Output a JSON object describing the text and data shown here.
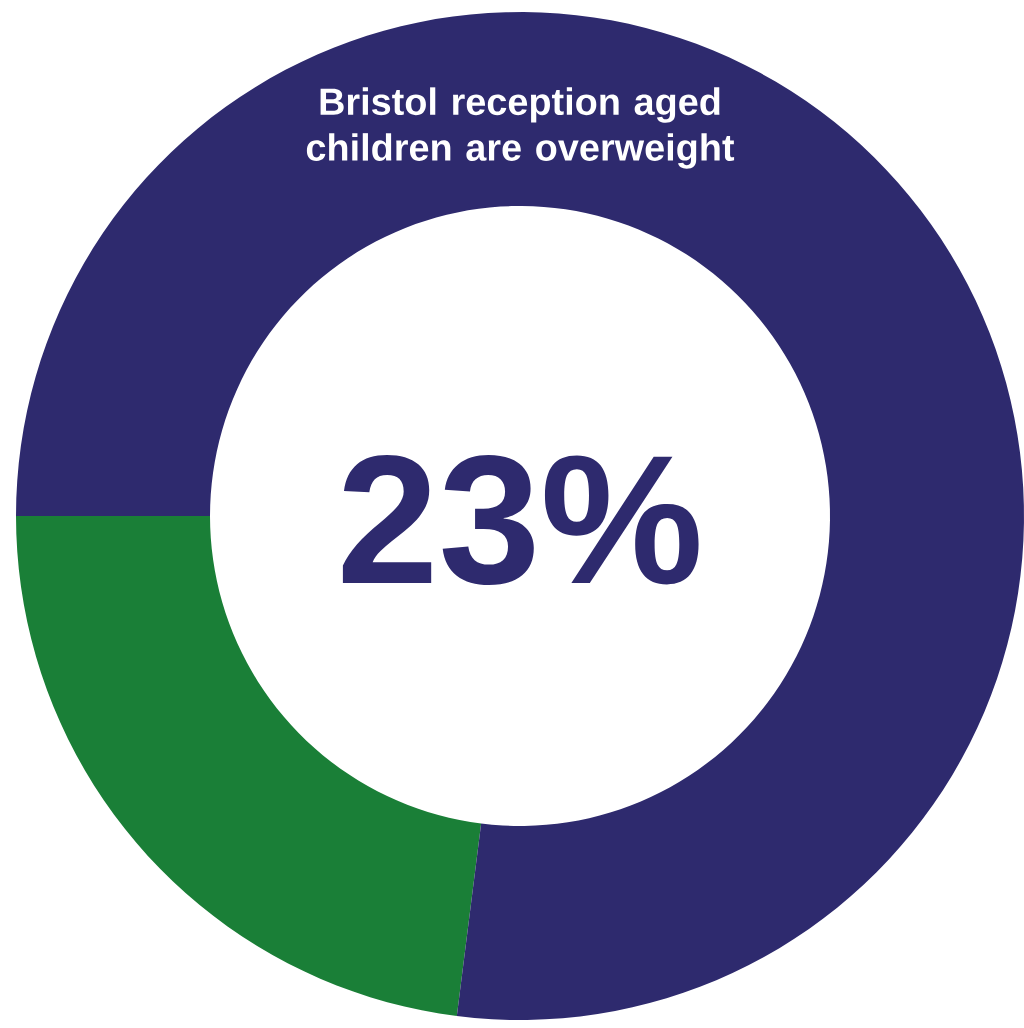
{
  "chart_data": {
    "type": "donut",
    "title": "Bristol reception aged children are overweight",
    "categories": [
      null,
      null
    ],
    "values": [
      23,
      77
    ],
    "colors": [
      "#1a7f37",
      "#2e2a6e"
    ],
    "annotations": [
      "23%"
    ]
  }
}
